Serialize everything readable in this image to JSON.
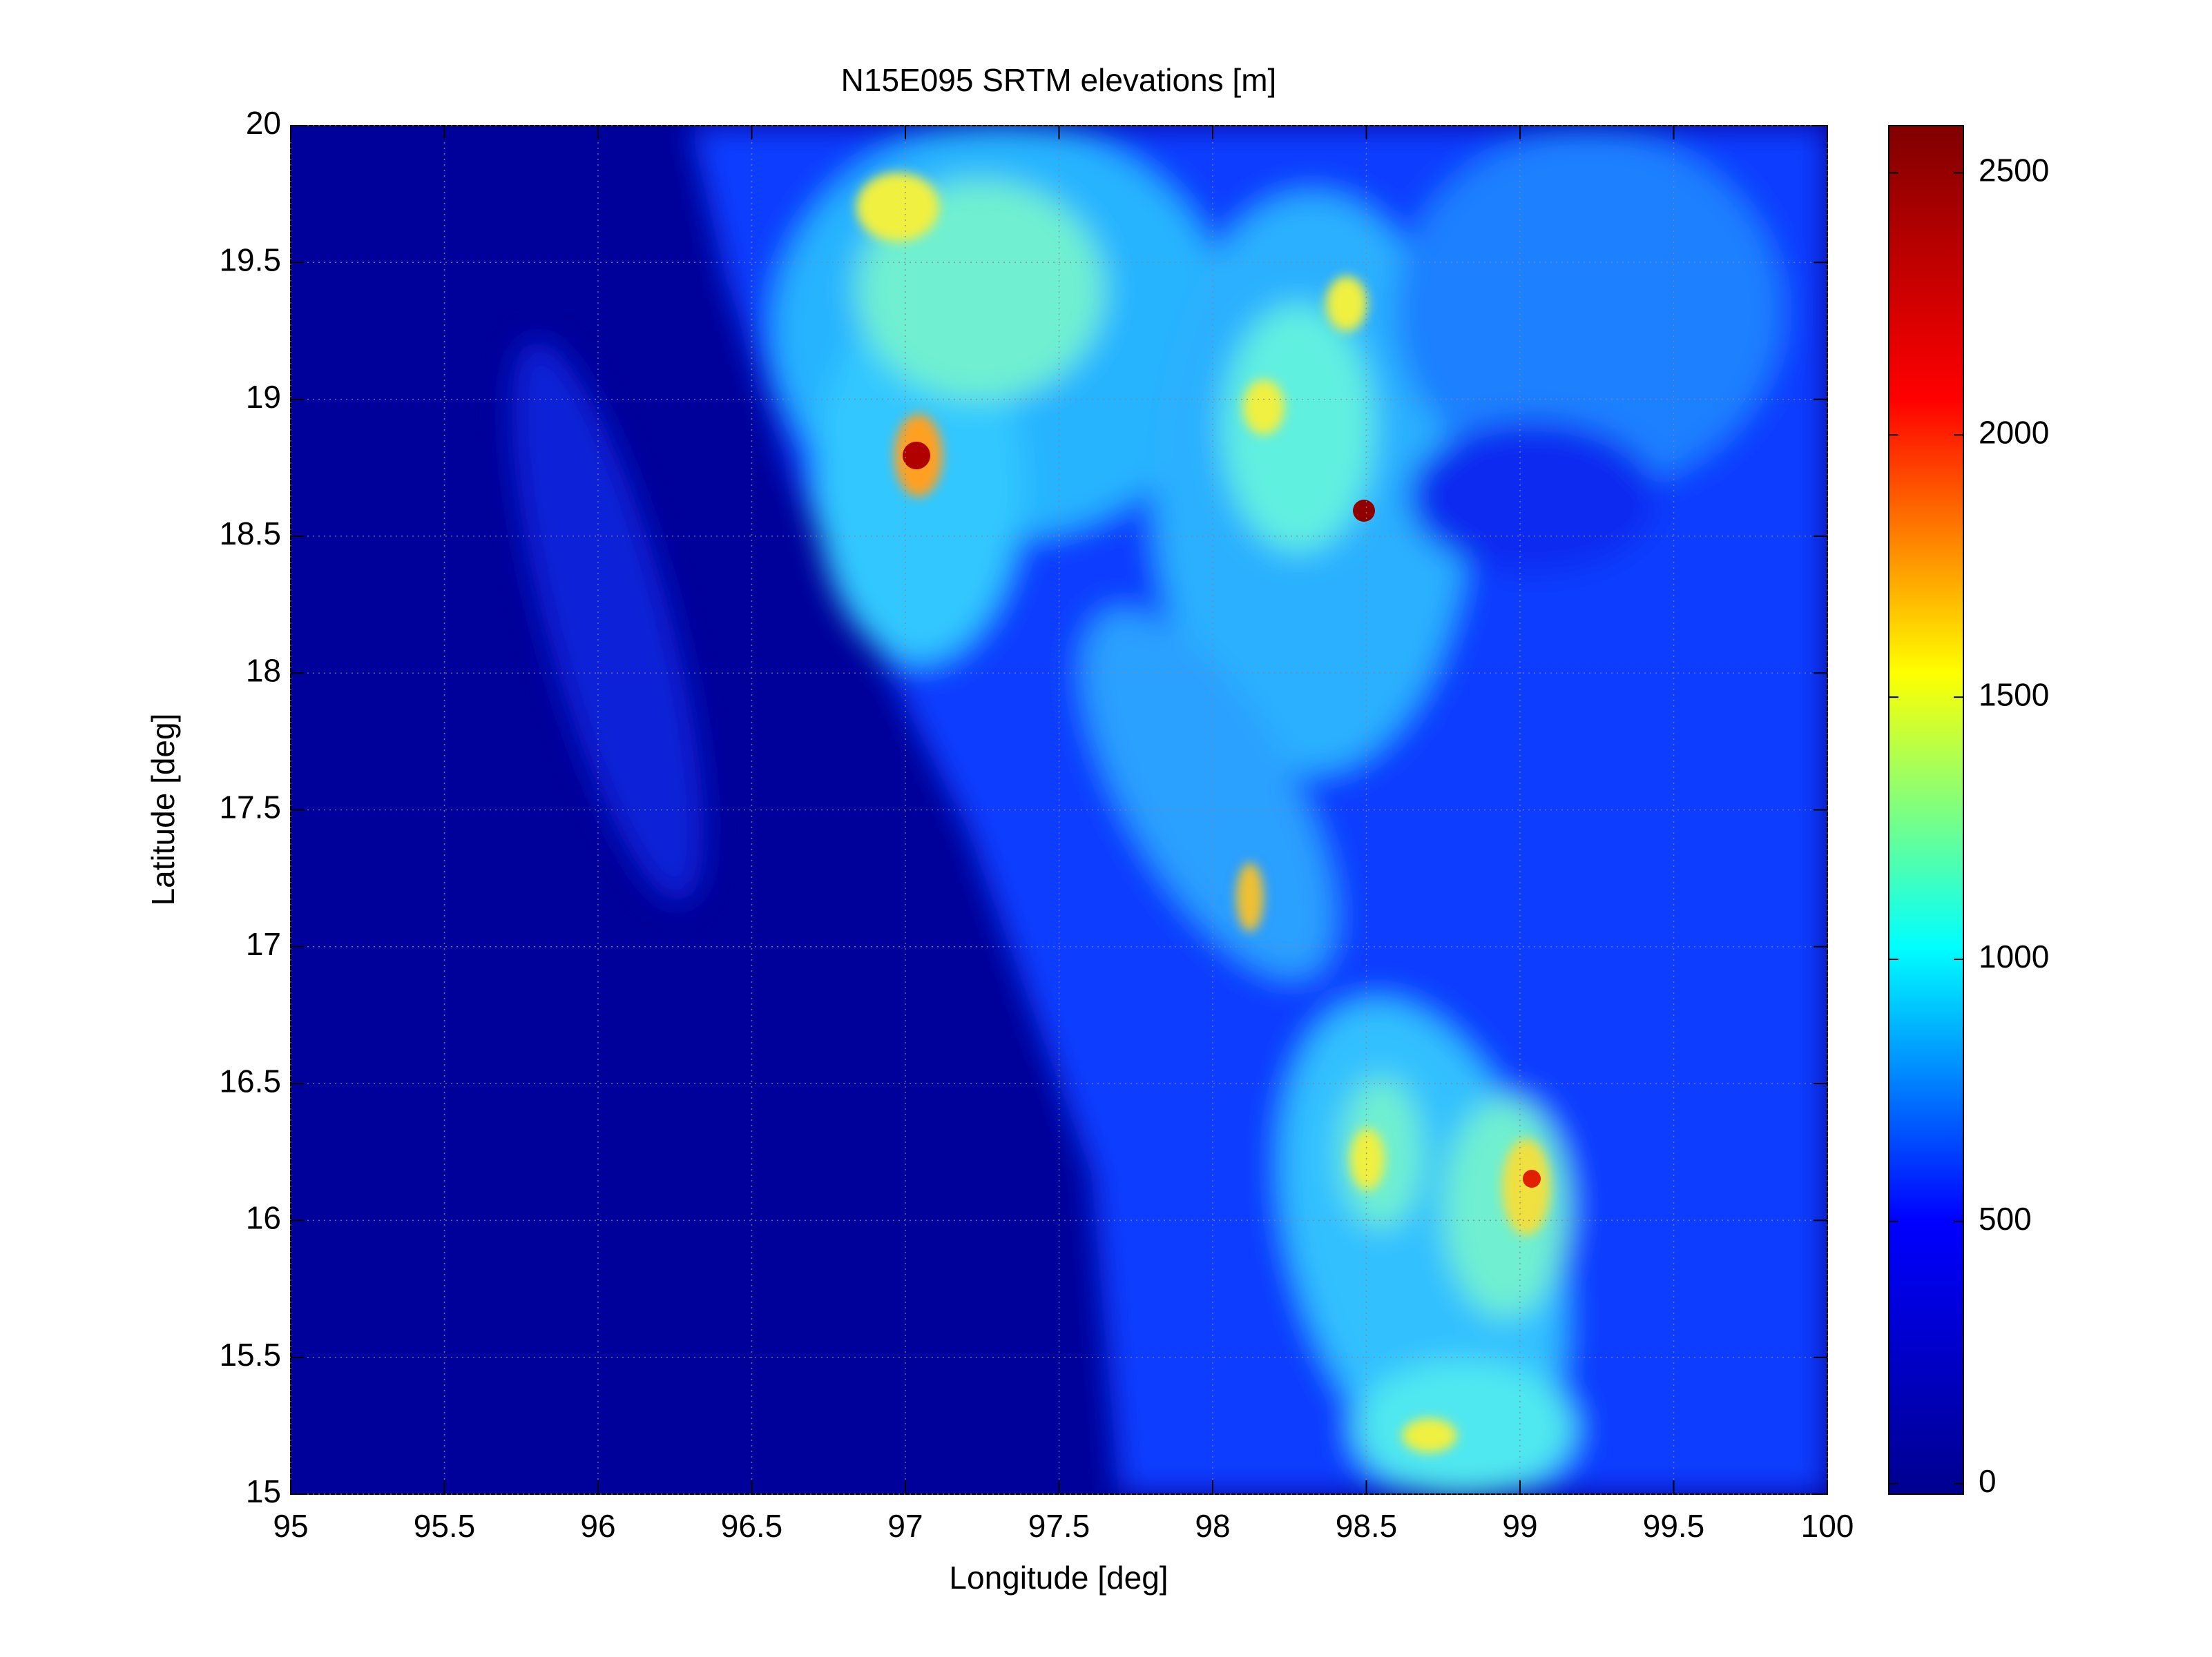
{
  "chart_data": {
    "type": "heatmap",
    "title": "N15E095 SRTM elevations [m]",
    "x_label": "Longitude [deg]",
    "y_label": "Latitude [deg]",
    "xlim": [
      95,
      100
    ],
    "ylim": [
      15,
      20
    ],
    "xticks": [
      95,
      95.5,
      96,
      96.5,
      97,
      97.5,
      98,
      98.5,
      99,
      99.5,
      100
    ],
    "yticks": [
      15,
      15.5,
      16,
      16.5,
      17,
      17.5,
      18,
      18.5,
      19,
      19.5,
      20
    ],
    "grid": true,
    "colormap": [
      "#00008f",
      "#0000ff",
      "#00ffff",
      "#ffff00",
      "#ff0000",
      "#800000"
    ],
    "colorbar": {
      "clim": [
        -20,
        2590
      ],
      "ticks": [
        0,
        500,
        1000,
        1500,
        2000,
        2500
      ]
    }
  }
}
